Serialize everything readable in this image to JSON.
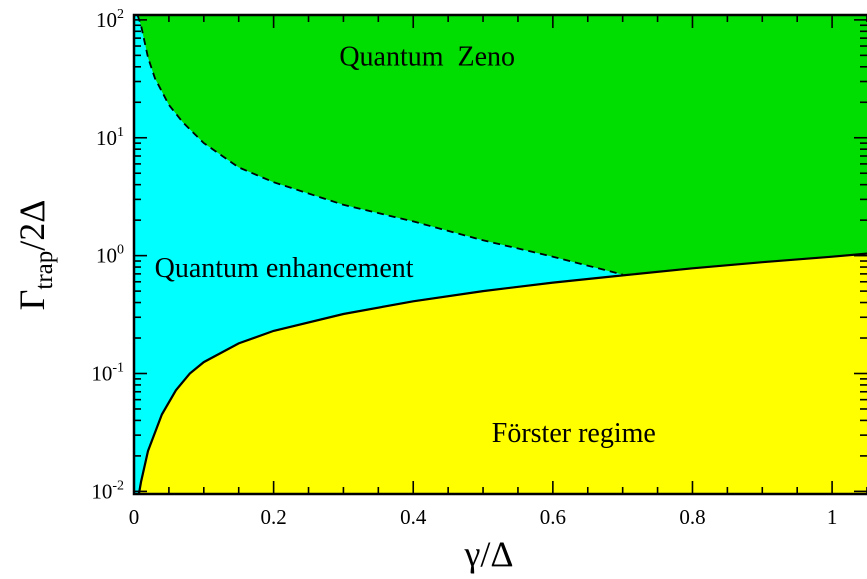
{
  "chart_data": {
    "type": "area",
    "xlabel": "γ/Δ",
    "ylabel": {
      "main": "Γ",
      "sub": "trap",
      "rest": "/2Δ"
    },
    "xlim": [
      0,
      1.05
    ],
    "ylim": [
      0.0095,
      110
    ],
    "yscale": "log",
    "x_ticks": [
      {
        "value": 0,
        "label": "0"
      },
      {
        "value": 0.2,
        "label": "0.2"
      },
      {
        "value": 0.4,
        "label": "0.4"
      },
      {
        "value": 0.6,
        "label": "0.6"
      },
      {
        "value": 0.8,
        "label": "0.8"
      },
      {
        "value": 1,
        "label": "1"
      }
    ],
    "x_minor_step": 0.05,
    "y_ticks": [
      {
        "value": 0.01,
        "base": "10",
        "exp": "-2"
      },
      {
        "value": 0.1,
        "base": "10",
        "exp": "-1"
      },
      {
        "value": 1,
        "base": "10",
        "exp": "0"
      },
      {
        "value": 10,
        "base": "10",
        "exp": "1"
      },
      {
        "value": 100,
        "base": "10",
        "exp": "2"
      }
    ],
    "colors": {
      "zeno": "#00dd00",
      "enhancement": "#00ffff",
      "forster": "#ffff00",
      "line": "#000000"
    },
    "boundaries": {
      "forster_solid": {
        "x": [
          0.007,
          0.01,
          0.02,
          0.04,
          0.06,
          0.08,
          0.1,
          0.15,
          0.2,
          0.3,
          0.4,
          0.5,
          0.6,
          0.7,
          0.8,
          0.9,
          1.0,
          1.05
        ],
        "y": [
          0.0095,
          0.012,
          0.022,
          0.045,
          0.072,
          0.1,
          0.125,
          0.18,
          0.23,
          0.32,
          0.41,
          0.5,
          0.59,
          0.68,
          0.78,
          0.88,
          0.98,
          1.04
        ]
      },
      "zeno_dashed": {
        "x": [
          0.005,
          0.01,
          0.02,
          0.03,
          0.05,
          0.07,
          0.1,
          0.15,
          0.2,
          0.3,
          0.4,
          0.5,
          0.6,
          0.7
        ],
        "y": [
          110,
          90,
          48,
          32,
          19,
          13.5,
          9,
          5.6,
          4.2,
          2.7,
          1.95,
          1.35,
          0.98,
          0.69
        ]
      },
      "crossing_x": 0.7
    },
    "regions": [
      {
        "name": "Quantum  Zeno",
        "x": 0.42,
        "y": 50
      },
      {
        "name": "Quantum enhancement",
        "x": 0.215,
        "y": 0.8
      },
      {
        "name": "Förster regime",
        "x": 0.63,
        "y": 0.032
      }
    ]
  }
}
